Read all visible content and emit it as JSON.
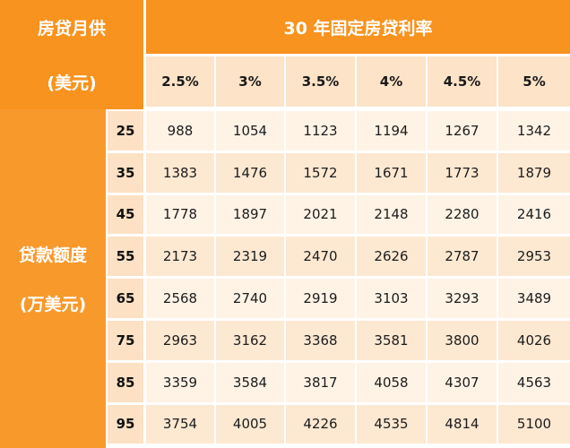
{
  "header": {
    "corner_line1": "房贷月供",
    "corner_line2": "(美元)",
    "rate_title": "30 年固定房贷利率"
  },
  "side": {
    "line1": "贷款额度",
    "line2": "(万美元)"
  },
  "rates": [
    "2.5%",
    "3%",
    "3.5%",
    "4%",
    "4.5%",
    "5%"
  ],
  "rows": [
    {
      "amount": "25",
      "values": [
        "988",
        "1054",
        "1123",
        "1194",
        "1267",
        "1342"
      ]
    },
    {
      "amount": "35",
      "values": [
        "1383",
        "1476",
        "1572",
        "1671",
        "1773",
        "1879"
      ]
    },
    {
      "amount": "45",
      "values": [
        "1778",
        "1897",
        "2021",
        "2148",
        "2280",
        "2416"
      ]
    },
    {
      "amount": "55",
      "values": [
        "2173",
        "2319",
        "2470",
        "2626",
        "2787",
        "2953"
      ]
    },
    {
      "amount": "65",
      "values": [
        "2568",
        "2740",
        "2919",
        "3103",
        "3293",
        "3489"
      ]
    },
    {
      "amount": "75",
      "values": [
        "2963",
        "3162",
        "3368",
        "3581",
        "3800",
        "4026"
      ]
    },
    {
      "amount": "85",
      "values": [
        "3359",
        "3584",
        "3817",
        "4058",
        "4307",
        "4563"
      ]
    },
    {
      "amount": "95",
      "values": [
        "3754",
        "4005",
        "4226",
        "4535",
        "4814",
        "5100"
      ]
    }
  ],
  "colors": {
    "header_orange": "#f7931e",
    "header_peach": "#fde3c8",
    "row_light": "#fff3e6",
    "row_dark": "#fde8d2"
  }
}
